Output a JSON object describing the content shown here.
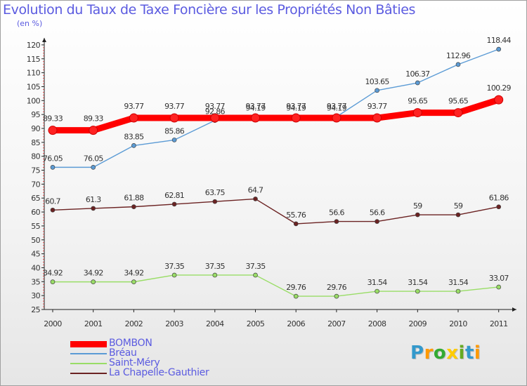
{
  "title": "Evolution du Taux de Taxe Foncière sur les Propriétés Non Bâties",
  "unit_label": "(en %)",
  "brand": "Proxiti",
  "chart_data": {
    "type": "line",
    "x": [
      "2000",
      "2001",
      "2002",
      "2003",
      "2004",
      "2005",
      "2006",
      "2007",
      "2008",
      "2009",
      "2010",
      "2011"
    ],
    "ylim": [
      25,
      120
    ],
    "yticks": [
      25,
      30,
      35,
      40,
      45,
      50,
      55,
      60,
      65,
      70,
      75,
      80,
      85,
      90,
      95,
      100,
      105,
      110,
      115,
      120
    ],
    "grid": false,
    "legend_position": "bottom-left",
    "series": [
      {
        "name": "BOMBON",
        "color": "#ff0000",
        "emphasis": true,
        "values": [
          89.33,
          89.33,
          93.77,
          93.77,
          93.77,
          93.77,
          93.77,
          93.77,
          93.77,
          95.65,
          95.65,
          100.29
        ],
        "labels": [
          "89.33",
          "89.33",
          "93.77",
          "93.77",
          "93.77",
          "93.77",
          "93.77",
          "93.77",
          "93.77",
          "95.65",
          "95.65",
          "100.29"
        ]
      },
      {
        "name": "Bréau",
        "color": "#5b9bd5",
        "emphasis": false,
        "values": [
          76.05,
          76.05,
          83.85,
          85.86,
          92.86,
          94.19,
          94.19,
          94.19,
          103.65,
          106.37,
          112.96,
          118.44
        ],
        "labels": [
          "76.05",
          "76.05",
          "83.85",
          "85.86",
          "92.86",
          "94.19",
          "94.19",
          "94.19",
          "103.65",
          "106.37",
          "112.96",
          "118.44"
        ]
      },
      {
        "name": "Saint-Méry",
        "color": "#99dd66",
        "emphasis": false,
        "values": [
          34.92,
          34.92,
          34.92,
          37.35,
          37.35,
          37.35,
          29.76,
          29.76,
          31.54,
          31.54,
          31.54,
          33.07
        ],
        "labels": [
          "34.92",
          "34.92",
          "34.92",
          "37.35",
          "37.35",
          "37.35",
          "29.76",
          "29.76",
          "31.54",
          "31.54",
          "31.54",
          "33.07"
        ]
      },
      {
        "name": "La Chapelle-Gauthier",
        "color": "#6b2222",
        "emphasis": false,
        "values": [
          60.7,
          61.3,
          61.88,
          62.81,
          63.75,
          64.7,
          55.76,
          56.6,
          56.6,
          59,
          59,
          61.86
        ],
        "labels": [
          "60.7",
          "61.3",
          "61.88",
          "62.81",
          "63.75",
          "64.7",
          "55.76",
          "56.6",
          "56.6",
          "59",
          "59",
          "61.86"
        ]
      }
    ]
  }
}
